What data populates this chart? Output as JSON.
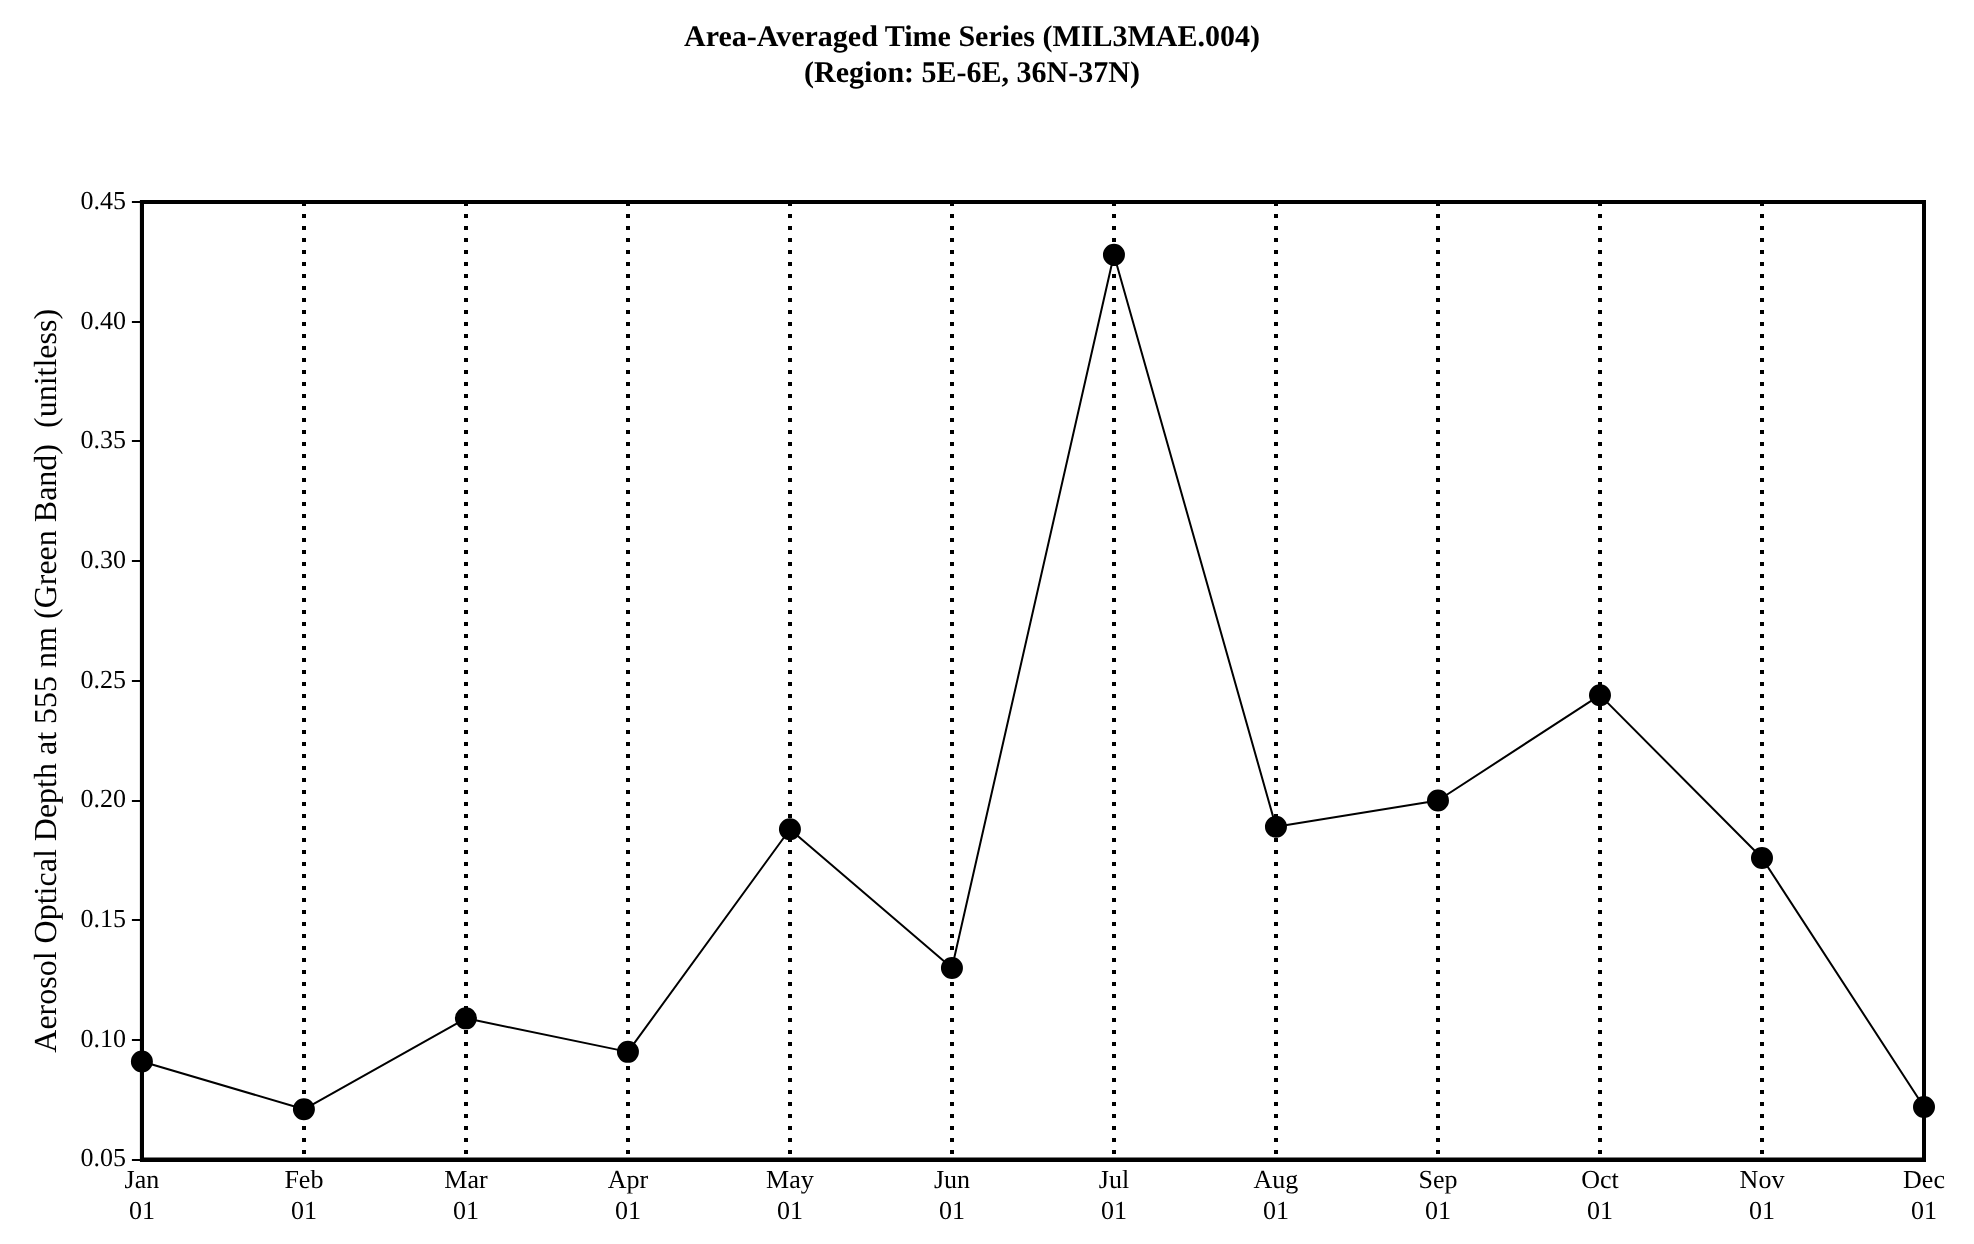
{
  "chart_data": {
    "type": "line",
    "title": "Area-Averaged Time Series (MIL3MAE.004)",
    "subtitle": "(Region: 5E-6E, 36N-37N)",
    "ylabel": "Aerosol Optical Depth at 555 nm (Green Band)  (unitless)",
    "categories": [
      "Jan 01",
      "Feb 01",
      "Mar 01",
      "Apr 01",
      "May 01",
      "Jun 01",
      "Jul 01",
      "Aug 01",
      "Sep 01",
      "Oct 01",
      "Nov 01",
      "Dec 01"
    ],
    "series": [
      {
        "color": "#000000",
        "values": [
          0.091,
          0.071,
          0.109,
          0.095,
          0.188,
          0.13,
          0.428,
          0.189,
          0.2,
          0.244,
          0.176,
          0.072
        ]
      }
    ],
    "ylim": [
      0.05,
      0.45
    ],
    "yticks": [
      0.05,
      {
        "value": 0.1,
        "label": "0.10"
      },
      0.15,
      {
        "value": 0.2,
        "label": "0.20"
      },
      0.25,
      {
        "value": 0.3,
        "label": "0.30"
      },
      0.35,
      {
        "value": 0.4,
        "label": "0.40"
      },
      0.45
    ],
    "grid": "x",
    "legend": false,
    "marker": "circle",
    "line_style": "solid"
  }
}
